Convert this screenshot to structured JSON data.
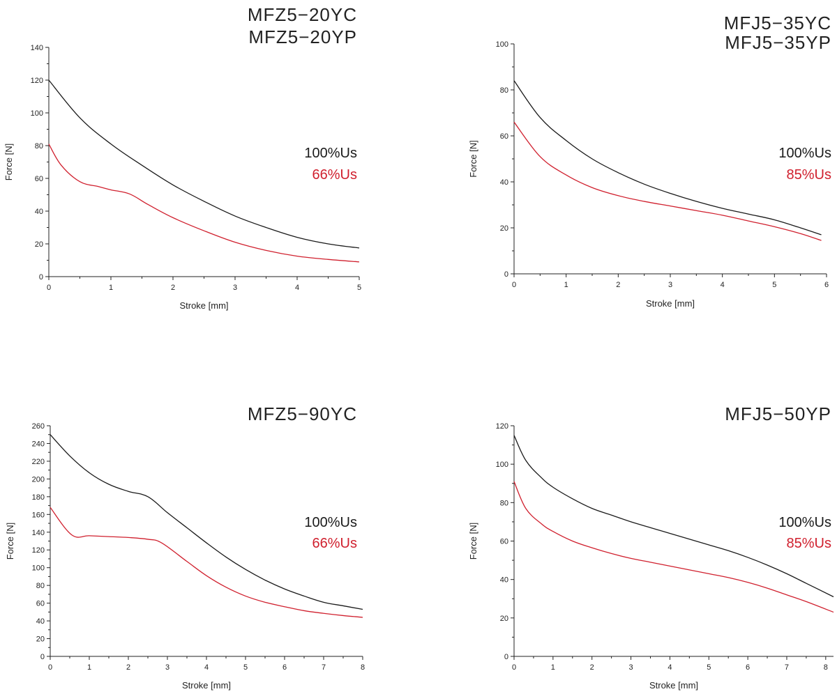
{
  "colors": {
    "series1": "#1a1a1a",
    "series2": "#d0202e",
    "axis": "#222222"
  },
  "chart_data": [
    {
      "type": "line",
      "title": "MFZ5−20YC",
      "subtitle": "MFZ5−20YP",
      "xlabel": "Stroke [mm]",
      "ylabel": "Force [N]",
      "xlim": [
        0,
        5
      ],
      "ylim": [
        0,
        140
      ],
      "xticks": [
        0,
        1,
        2,
        3,
        4,
        5
      ],
      "yticks": [
        0,
        20,
        40,
        60,
        80,
        100,
        120,
        140
      ],
      "grid": false,
      "legend": "right",
      "series": [
        {
          "name": "100%Us",
          "x": [
            0,
            0.5,
            1,
            1.5,
            2,
            2.5,
            3,
            3.5,
            4,
            4.5,
            5
          ],
          "y": [
            120,
            97,
            81,
            68,
            56,
            46,
            37,
            30,
            24,
            20,
            17.5
          ]
        },
        {
          "name": "66%Us",
          "x": [
            0,
            0.2,
            0.5,
            0.8,
            1.0,
            1.3,
            1.6,
            2,
            2.5,
            3,
            3.5,
            4,
            4.5,
            5
          ],
          "y": [
            81,
            68,
            58,
            55,
            53,
            50.5,
            44,
            36,
            28,
            21,
            16,
            12.5,
            10.5,
            9
          ]
        }
      ]
    },
    {
      "type": "line",
      "title": "MFJ5−35YC",
      "subtitle": "MFJ5−35YP",
      "xlabel": "Stroke [mm]",
      "ylabel": "Force [N]",
      "xlim": [
        0,
        6
      ],
      "ylim": [
        0,
        100
      ],
      "xticks": [
        0,
        1,
        2,
        3,
        4,
        5,
        6
      ],
      "yticks": [
        0,
        20,
        40,
        60,
        80,
        100
      ],
      "grid": false,
      "legend": "right",
      "series": [
        {
          "name": "100%Us",
          "x": [
            0,
            0.5,
            1,
            1.5,
            2,
            2.5,
            3,
            3.5,
            4,
            4.5,
            5,
            5.5,
            5.9
          ],
          "y": [
            84,
            68,
            58,
            50,
            44,
            39,
            35,
            31.5,
            28.5,
            26,
            23.5,
            20,
            17
          ]
        },
        {
          "name": "85%Us",
          "x": [
            0,
            0.5,
            1,
            1.5,
            2,
            2.5,
            3,
            3.5,
            4,
            4.5,
            5,
            5.5,
            5.9
          ],
          "y": [
            66,
            51,
            43,
            37.5,
            34,
            31.5,
            29.5,
            27.5,
            25.5,
            23,
            20.5,
            17.5,
            14.5
          ]
        }
      ]
    },
    {
      "type": "line",
      "title": "MFZ5−90YC",
      "subtitle": "",
      "xlabel": "Stroke [mm]",
      "ylabel": "Force [N]",
      "xlim": [
        0,
        8
      ],
      "ylim": [
        0,
        260
      ],
      "xticks": [
        0,
        1,
        2,
        3,
        4,
        5,
        6,
        7,
        8
      ],
      "yticks": [
        0,
        20,
        40,
        60,
        80,
        100,
        120,
        140,
        160,
        180,
        200,
        220,
        240,
        260
      ],
      "grid": false,
      "legend": "right",
      "series": [
        {
          "name": "100%Us",
          "x": [
            0,
            0.5,
            1,
            1.5,
            2,
            2.5,
            3,
            3.5,
            4,
            4.5,
            5,
            5.5,
            6,
            6.5,
            7,
            7.5,
            8
          ],
          "y": [
            250,
            226,
            207,
            194,
            186,
            180,
            162,
            145,
            128,
            112,
            98,
            86,
            76,
            68,
            61,
            57,
            53
          ]
        },
        {
          "name": "66%Us",
          "x": [
            0,
            0.55,
            1,
            1.5,
            2,
            2.5,
            2.85,
            3.5,
            4,
            4.5,
            5,
            5.5,
            6,
            6.5,
            7,
            7.5,
            8
          ],
          "y": [
            168,
            137,
            136,
            135,
            134,
            132,
            128,
            107,
            91,
            78,
            68,
            61,
            56,
            51.5,
            48.5,
            46,
            44
          ]
        }
      ]
    },
    {
      "type": "line",
      "title": "MFJ5−50YP",
      "subtitle": "",
      "xlabel": "Stroke [mm]",
      "ylabel": "Force [N]",
      "xlim": [
        0,
        8.2
      ],
      "ylim": [
        0,
        120
      ],
      "xticks": [
        0,
        1,
        2,
        3,
        4,
        5,
        6,
        7,
        8
      ],
      "yticks": [
        0,
        20,
        40,
        60,
        80,
        100,
        120
      ],
      "grid": false,
      "legend": "right",
      "series": [
        {
          "name": "100%Us",
          "x": [
            0,
            0.3,
            0.7,
            1,
            1.5,
            2,
            2.5,
            3,
            3.5,
            4,
            4.5,
            5,
            5.5,
            6,
            6.5,
            7,
            7.5,
            8.2
          ],
          "y": [
            115,
            102,
            93,
            88,
            82,
            77,
            73.5,
            70,
            67,
            64,
            61,
            58,
            55,
            51.5,
            47.5,
            43,
            38,
            31
          ]
        },
        {
          "name": "85%Us",
          "x": [
            0,
            0.3,
            0.7,
            1,
            1.5,
            2,
            2.5,
            3,
            3.5,
            4,
            4.5,
            5,
            5.5,
            6,
            6.5,
            7,
            7.5,
            8.2
          ],
          "y": [
            91,
            77,
            69,
            65,
            60,
            56.5,
            53.5,
            51,
            49,
            47,
            45,
            43,
            41,
            38.5,
            35.5,
            32,
            28.5,
            23
          ]
        }
      ]
    }
  ]
}
